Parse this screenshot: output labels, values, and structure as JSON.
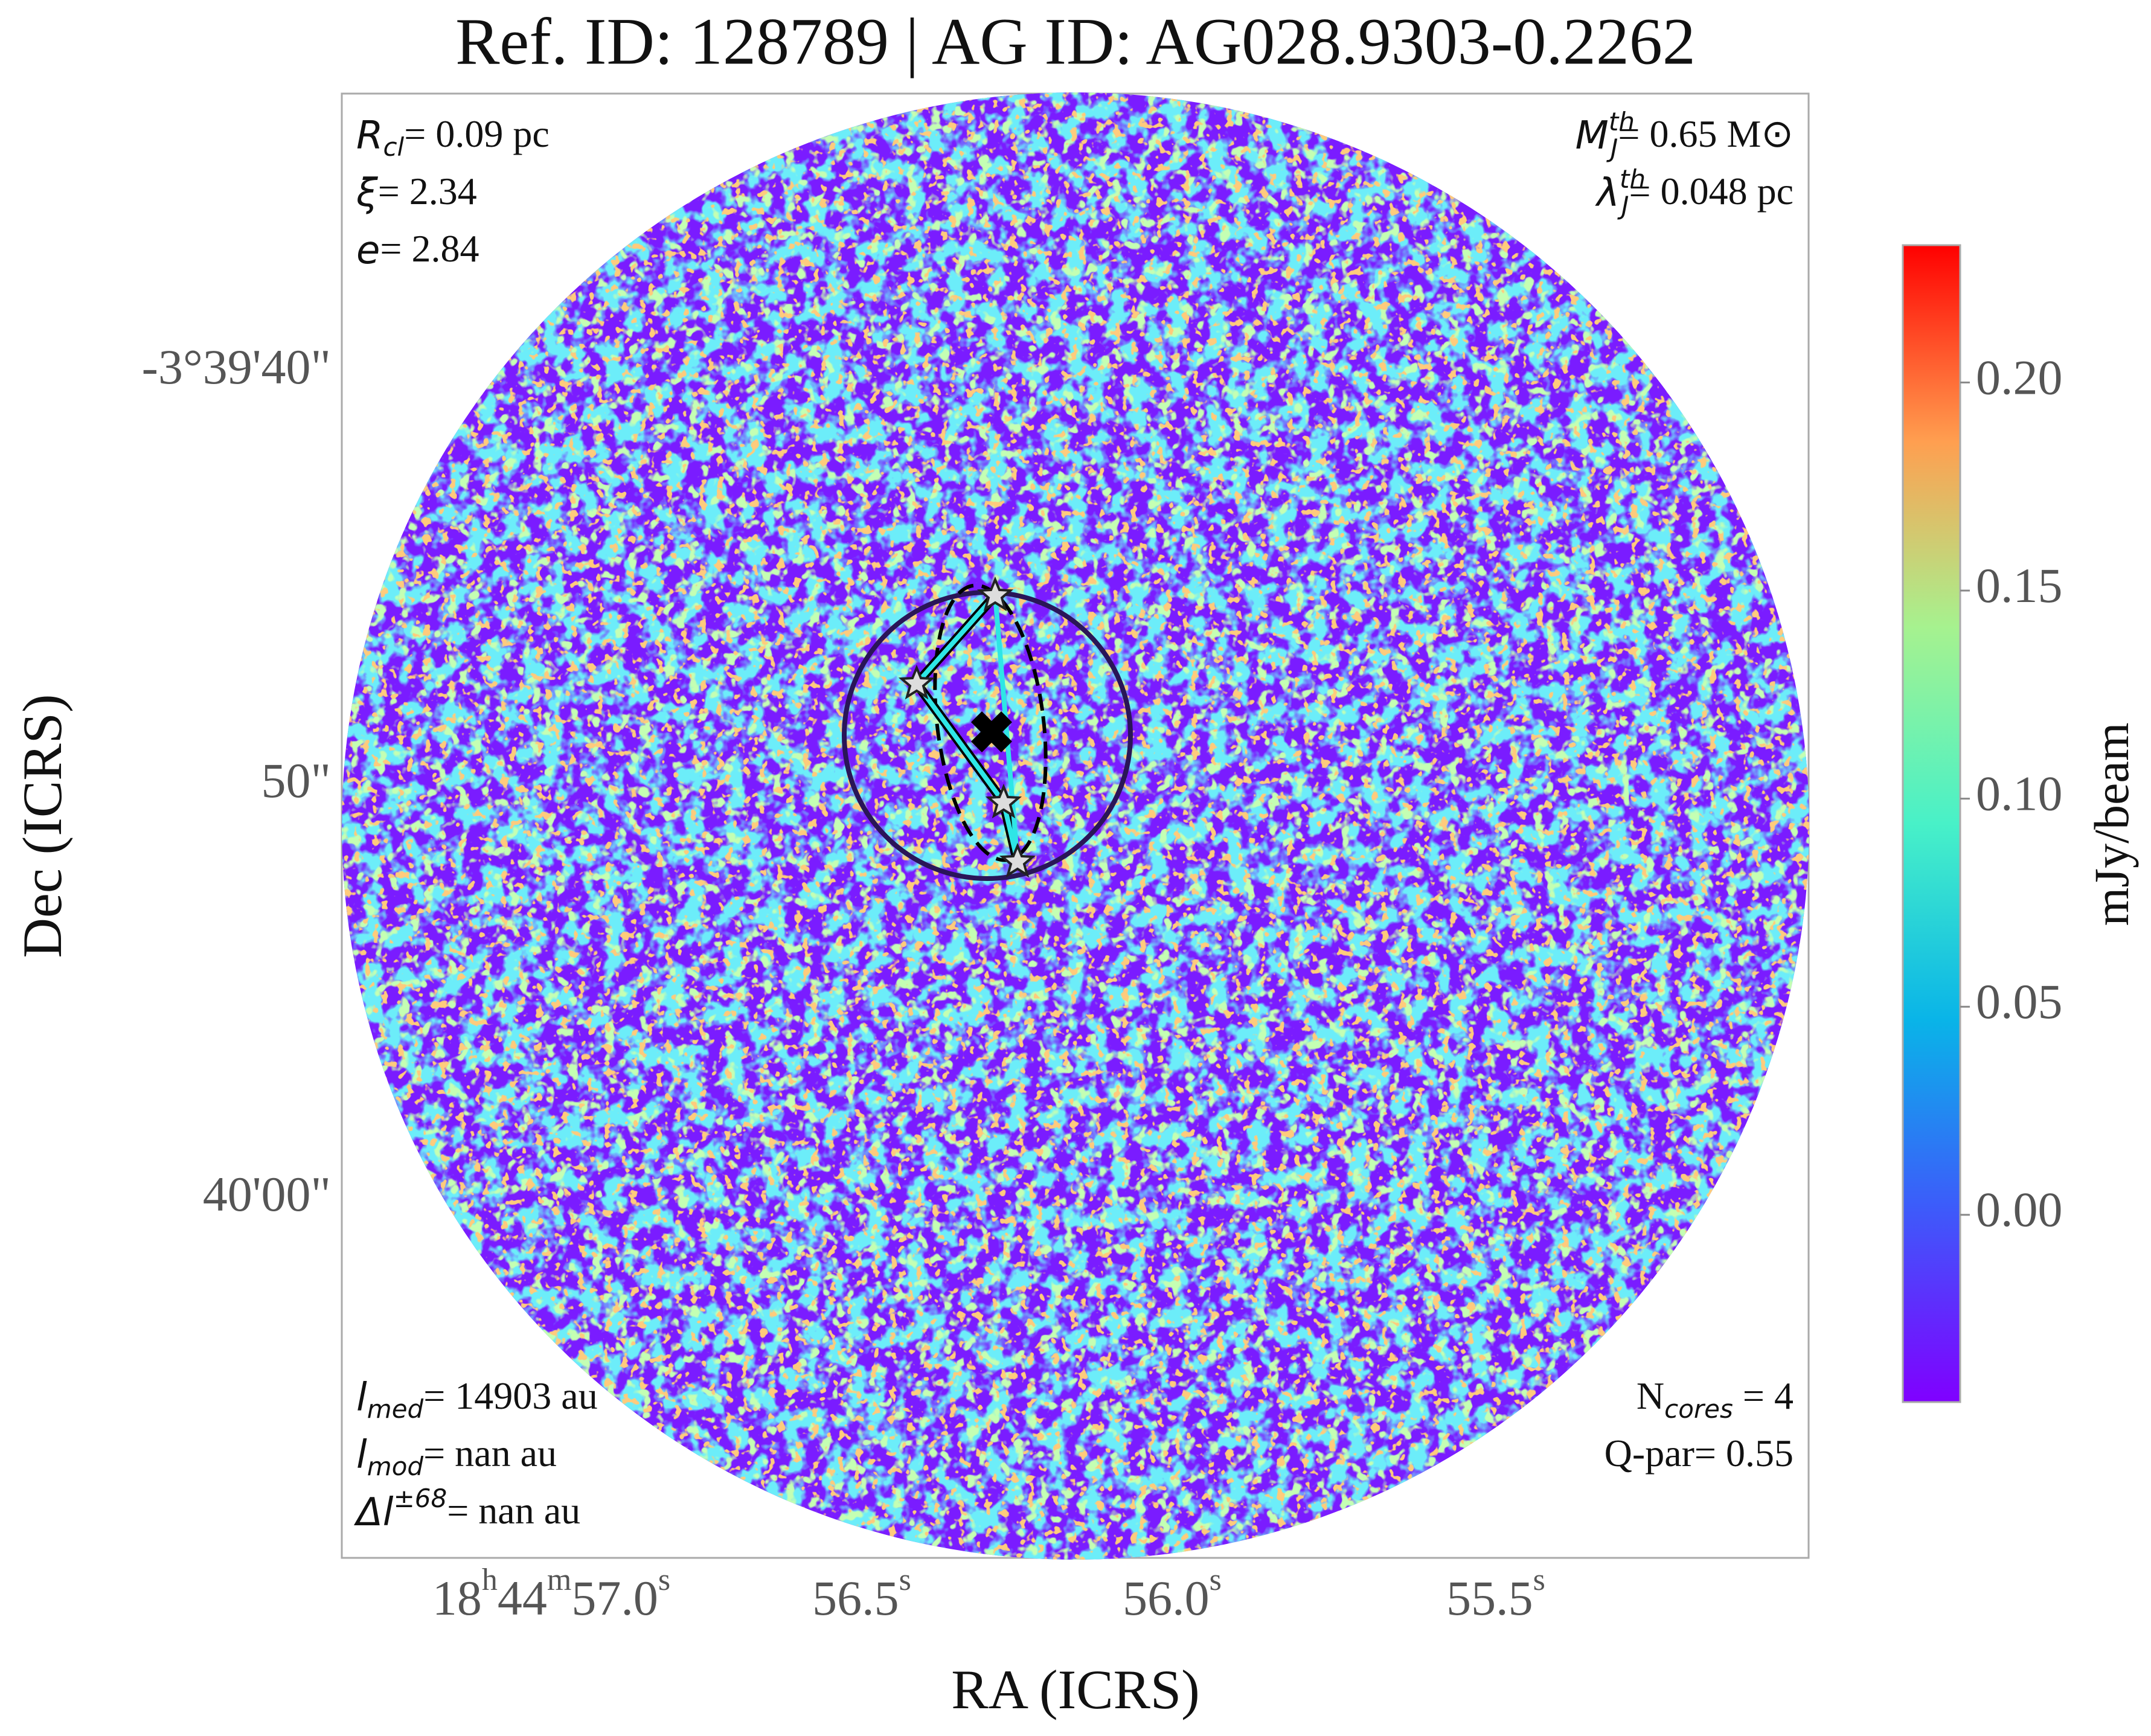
{
  "title": "Ref. ID: 128789 | AG ID: AG028.9303-0.2262",
  "annotations": {
    "top_left": [
      {
        "symbol": "R",
        "sub": "cl",
        "text": "= 0.09 pc"
      },
      {
        "symbol": "ξ",
        "text": "= 2.34"
      },
      {
        "symbol": "e",
        "text": "= 2.84"
      }
    ],
    "top_right": [
      {
        "symbol": "M",
        "sub": "J",
        "sup": "th",
        "text": "= 0.65 M⊙"
      },
      {
        "symbol": "λ",
        "sub": "J",
        "sup": "th",
        "text": "= 0.048 pc"
      }
    ],
    "bottom_left": [
      {
        "symbol": "l",
        "sub": "med",
        "text": "= 14903 au"
      },
      {
        "symbol": "l",
        "sub": "mod",
        "text": "= nan au"
      },
      {
        "symbol": "Δl",
        "sup": "±68",
        "text": "= nan au"
      }
    ],
    "bottom_right": [
      {
        "symbol": "N",
        "sub": "cores",
        "text": " = 4"
      },
      {
        "symbol": "Q-par",
        "text": "= 0.55"
      }
    ]
  },
  "x_axis": {
    "label": "RA (ICRS)",
    "ticks": [
      [
        "18",
        "h",
        "44",
        "m",
        "57.0",
        "s"
      ],
      [
        "56.5",
        "s"
      ],
      [
        "56.0",
        "s"
      ],
      [
        "55.5",
        "s"
      ]
    ]
  },
  "y_axis": {
    "label": "Dec (ICRS)",
    "ticks": [
      "-3°39'40\"",
      "50\"",
      "40'00\""
    ]
  },
  "colorbar": {
    "label": "mJy/beam",
    "lim": [
      -0.045,
      0.233
    ],
    "ticks": [
      {
        "value": 0,
        "label": "0.00"
      },
      {
        "value": 0.05,
        "label": "0.05"
      },
      {
        "value": 0.1,
        "label": "0.10"
      },
      {
        "value": 0.15,
        "label": "0.15"
      },
      {
        "value": 0.2,
        "label": "0.20"
      }
    ]
  }
}
